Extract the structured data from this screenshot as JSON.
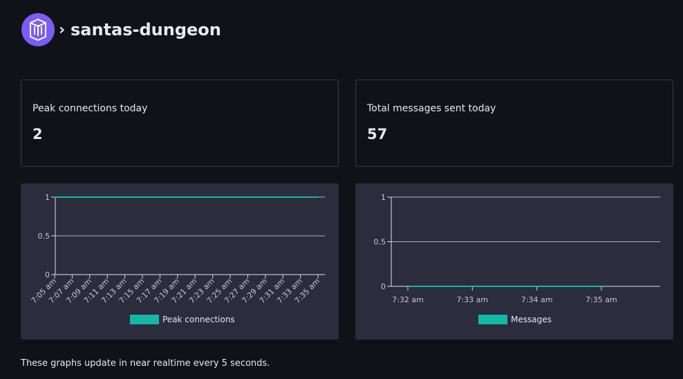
{
  "header": {
    "title": "santas-dungeon"
  },
  "stats": [
    {
      "label": "Peak connections today",
      "value": 2
    },
    {
      "label": "Total messages sent today",
      "value": 57
    }
  ],
  "chart_data": [
    {
      "type": "line",
      "categories": [
        "7:05 am",
        "7:07 am",
        "7:09 am",
        "7:11 am",
        "7:13 am",
        "7:15 am",
        "7:17 am",
        "7:19 am",
        "7:21 am",
        "7:23 am",
        "7:25 am",
        "7:27 am",
        "7:29 am",
        "7:31 am",
        "7:33 am",
        "7:35 am"
      ],
      "series": [
        {
          "name": "Peak connections",
          "color": "#14b8a6",
          "values": [
            1,
            1,
            1,
            1,
            1,
            1,
            1,
            1,
            1,
            1,
            1,
            1,
            1,
            1,
            1,
            1
          ]
        }
      ],
      "ylim": [
        0,
        1
      ],
      "yticks": [
        0,
        0.5,
        1
      ],
      "grid": true
    },
    {
      "type": "line",
      "categories": [
        "7:32 am",
        "7:33 am",
        "7:34 am",
        "7:35 am"
      ],
      "series": [
        {
          "name": "Messages",
          "color": "#14b8a6",
          "values": [
            0,
            0,
            0,
            0
          ]
        }
      ],
      "ylim": [
        0,
        1
      ],
      "yticks": [
        0,
        0.5,
        1
      ],
      "grid": true
    }
  ],
  "footer": "These graphs update in near realtime every 5 seconds."
}
